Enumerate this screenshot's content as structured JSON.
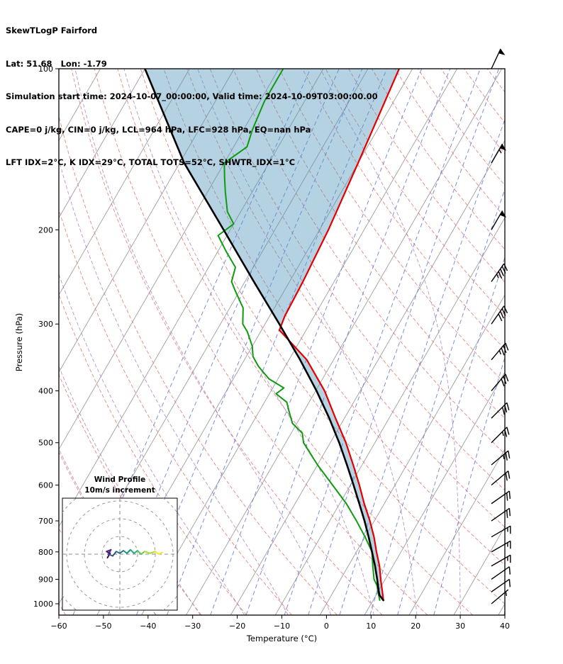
{
  "header": {
    "title": "SkewTLogP Fairford",
    "location": "Lat: 51.68   Lon: -1.79",
    "times": "Simulation start time: 2024-10-07_00:00:00, Valid time: 2024-10-09T03:00:00.00",
    "indices_line1": "CAPE=0 j/kg, CIN=0 j/kg, LCL=964 hPa, LFC=928 hPa, EQ=nan hPa",
    "indices_line2": "LFT IDX=2°C, K IDX=29°C, TOTAL TOTS=52°C, SHWTR_IDX=1°C"
  },
  "axes": {
    "x_label": "Temperature (°C)",
    "y_label": "Pressure (hPa)",
    "x_ticks": [
      "−60",
      "−50",
      "−40",
      "−30",
      "−20",
      "−10",
      "0",
      "10",
      "20",
      "30",
      "40"
    ],
    "x_tick_values": [
      -60,
      -50,
      -40,
      -30,
      -20,
      -10,
      0,
      10,
      20,
      30,
      40
    ],
    "y_ticks": [
      "100",
      "200",
      "300",
      "400",
      "500",
      "600",
      "700",
      "800",
      "900",
      "1000"
    ],
    "y_tick_values": [
      100,
      200,
      300,
      400,
      500,
      600,
      700,
      800,
      900,
      1000
    ]
  },
  "hodograph": {
    "title": "Wind Profile",
    "subtitle": "10m/s increment",
    "ring_interval_ms": 10,
    "rings_ms": [
      10,
      20,
      30,
      40
    ],
    "trace_uv_ms": [
      [
        -7,
        -2
      ],
      [
        -5.5,
        0.5
      ],
      [
        -7.5,
        1.5
      ],
      [
        -5,
        2.5
      ],
      [
        -6.5,
        0
      ],
      [
        -4,
        -1
      ],
      [
        -2,
        1.5
      ],
      [
        0,
        0.5
      ],
      [
        2,
        2
      ],
      [
        4,
        0.5
      ],
      [
        6,
        2.5
      ],
      [
        8,
        0.5
      ],
      [
        10,
        2
      ],
      [
        12,
        0
      ],
      [
        14,
        1.5
      ],
      [
        17,
        0.5
      ],
      [
        20,
        1.5
      ],
      [
        22,
        0
      ],
      [
        24,
        1
      ]
    ],
    "trace_colors": [
      "#440154",
      "#46287c",
      "#3b518b",
      "#2c718e",
      "#21908d",
      "#27ad81",
      "#5cc863",
      "#aadc32",
      "#fde725"
    ]
  },
  "chart_data": {
    "type": "skewt-logp",
    "title": "SkewTLogP Fairford",
    "station": {
      "name": "Fairford",
      "lat": 51.68,
      "lon": -1.79
    },
    "valid": {
      "start": "2024-10-07_00:00:00",
      "valid": "2024-10-09T03:00:00.00"
    },
    "indices": {
      "CAPE_jkg": 0,
      "CIN_jkg": 0,
      "LCL_hPa": 964,
      "LFC_hPa": 928,
      "EQ_hPa": "nan",
      "LFT_IDX_C": 2,
      "K_IDX_C": 29,
      "TOTAL_TOTS_C": 52,
      "SHWTR_IDX_C": 1
    },
    "pressure_range_hPa": [
      100,
      1050
    ],
    "temperature_range_C": [
      -60,
      40
    ],
    "skew_rotation_deg": 30,
    "temperature_profile_C": [
      [
        985,
        12.3
      ],
      [
        950,
        11
      ],
      [
        925,
        10
      ],
      [
        900,
        9
      ],
      [
        850,
        7
      ],
      [
        800,
        4.5
      ],
      [
        750,
        2
      ],
      [
        700,
        -1
      ],
      [
        650,
        -4.5
      ],
      [
        600,
        -8
      ],
      [
        550,
        -12
      ],
      [
        500,
        -16.5
      ],
      [
        450,
        -22
      ],
      [
        400,
        -28
      ],
      [
        350,
        -36
      ],
      [
        320,
        -43
      ],
      [
        308,
        -46
      ],
      [
        290,
        -46.6
      ],
      [
        250,
        -47
      ],
      [
        200,
        -48
      ],
      [
        150,
        -50
      ],
      [
        100,
        -53
      ]
    ],
    "dewpoint_profile_C": [
      [
        985,
        11.5
      ],
      [
        950,
        10
      ],
      [
        925,
        9
      ],
      [
        900,
        7.5
      ],
      [
        850,
        5.5
      ],
      [
        800,
        3.5
      ],
      [
        750,
        0
      ],
      [
        700,
        -4
      ],
      [
        650,
        -8.5
      ],
      [
        600,
        -14
      ],
      [
        550,
        -20
      ],
      [
        500,
        -26
      ],
      [
        480,
        -27.5
      ],
      [
        460,
        -31
      ],
      [
        440,
        -33
      ],
      [
        420,
        -35
      ],
      [
        405,
        -38.5
      ],
      [
        395,
        -37.5
      ],
      [
        380,
        -42
      ],
      [
        360,
        -46
      ],
      [
        345,
        -48.5
      ],
      [
        330,
        -50
      ],
      [
        310,
        -53
      ],
      [
        300,
        -55
      ],
      [
        280,
        -57
      ],
      [
        260,
        -61
      ],
      [
        250,
        -63
      ],
      [
        235,
        -64
      ],
      [
        220,
        -68
      ],
      [
        205,
        -72
      ],
      [
        195,
        -70
      ],
      [
        185,
        -73
      ],
      [
        170,
        -76
      ],
      [
        160,
        -78
      ],
      [
        150,
        -80
      ],
      [
        140,
        -77
      ],
      [
        130,
        -78
      ],
      [
        115,
        -79
      ],
      [
        100,
        -79
      ]
    ],
    "parcel_profile_C": [
      [
        985,
        12.3
      ],
      [
        964,
        10.8
      ],
      [
        950,
        10.2
      ],
      [
        925,
        9.2
      ],
      [
        900,
        8.2
      ],
      [
        850,
        6
      ],
      [
        800,
        3.5
      ],
      [
        750,
        0.8
      ],
      [
        700,
        -2.2
      ],
      [
        650,
        -5.6
      ],
      [
        600,
        -9.3
      ],
      [
        550,
        -13.4
      ],
      [
        500,
        -18
      ],
      [
        450,
        -23.4
      ],
      [
        400,
        -29.8
      ],
      [
        350,
        -37.5
      ],
      [
        300,
        -46.8
      ],
      [
        250,
        -58
      ],
      [
        200,
        -71.5
      ],
      [
        150,
        -89
      ],
      [
        100,
        -110
      ]
    ],
    "wind_barbs": {
      "units": "kt",
      "levels": [
        {
          "p": 1000,
          "kt": 5,
          "dir": 50
        },
        {
          "p": 950,
          "kt": 10,
          "dir": 55
        },
        {
          "p": 900,
          "kt": 10,
          "dir": 55
        },
        {
          "p": 850,
          "kt": 15,
          "dir": 60
        },
        {
          "p": 800,
          "kt": 15,
          "dir": 60
        },
        {
          "p": 750,
          "kt": 15,
          "dir": 60
        },
        {
          "p": 700,
          "kt": 20,
          "dir": 55
        },
        {
          "p": 650,
          "kt": 20,
          "dir": 55
        },
        {
          "p": 600,
          "kt": 20,
          "dir": 50
        },
        {
          "p": 550,
          "kt": 25,
          "dir": 50
        },
        {
          "p": 500,
          "kt": 25,
          "dir": 45
        },
        {
          "p": 450,
          "kt": 30,
          "dir": 45
        },
        {
          "p": 400,
          "kt": 30,
          "dir": 40
        },
        {
          "p": 350,
          "kt": 35,
          "dir": 40
        },
        {
          "p": 300,
          "kt": 40,
          "dir": 35
        },
        {
          "p": 250,
          "kt": 45,
          "dir": 35
        },
        {
          "p": 200,
          "kt": 50,
          "dir": 30
        },
        {
          "p": 150,
          "kt": 55,
          "dir": 30
        },
        {
          "p": 100,
          "kt": 50,
          "dir": 25
        }
      ]
    },
    "background": {
      "isotherms": {
        "color": "#9e9e9e",
        "from": -130,
        "to": 40,
        "step": 10
      },
      "dry_adiabats": {
        "color": "#e2726f",
        "from": -60,
        "to": 200,
        "step": 10
      },
      "moist_adiabats": {
        "color": "#a97bb5",
        "from": -40,
        "to": 40,
        "step": 10
      },
      "mixing_ratio_lines": {
        "color": "#6a79d8",
        "values_gkg": [
          0.02,
          0.05,
          0.1,
          0.2,
          0.5,
          1,
          2,
          3,
          5,
          8,
          12,
          20
        ]
      }
    },
    "styles": {
      "temperature_color": "#e50000",
      "dewpoint_color": "#0f9b0f",
      "parcel_color": "#000000",
      "shade_color": "#4e93bc",
      "shade_opacity": 0.42,
      "barb_color": "#000000",
      "frame_color": "#000000"
    }
  }
}
